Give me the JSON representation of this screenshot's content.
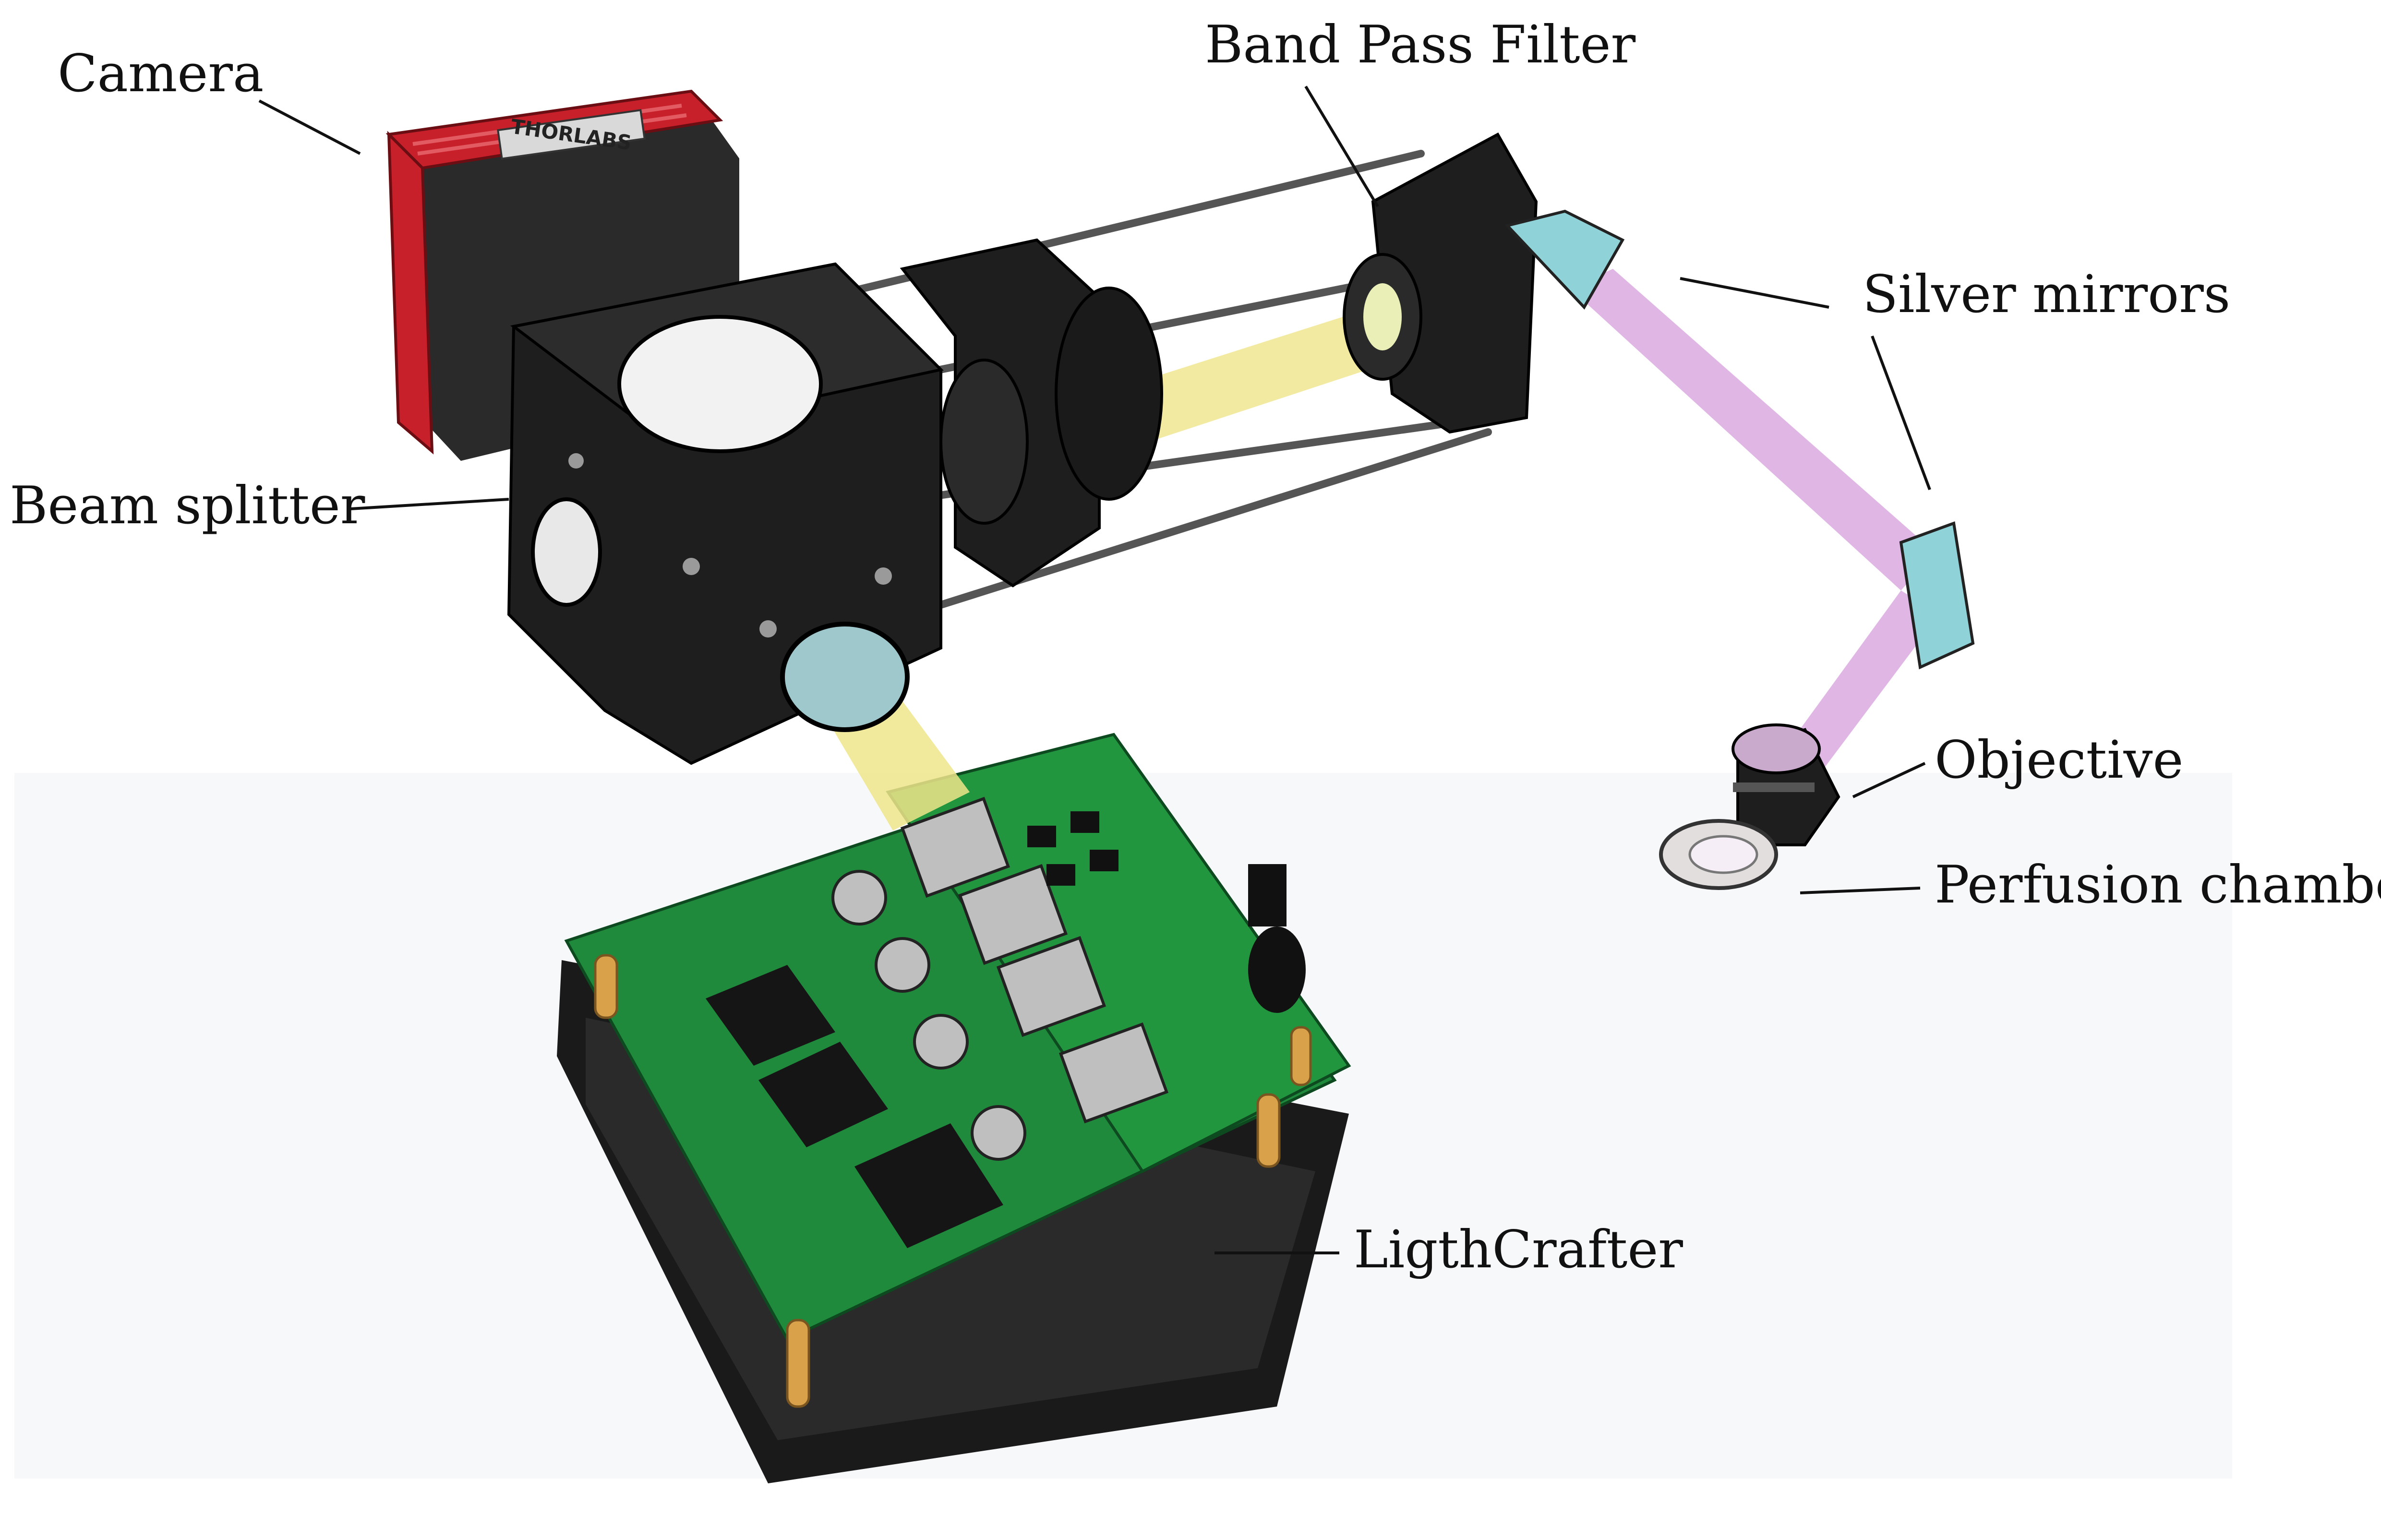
{
  "labels": {
    "camera": "Camera",
    "band_pass_filter": "Band Pass Filter",
    "silver_mirrors": "Silver mirrors",
    "beam_splitter": "Beam splitter",
    "objective": "Objective",
    "perfusion_chamber": "Perfusion chamber",
    "lightcrafter": "LigthCrafter"
  },
  "camera_brand": "THORLABS",
  "colors": {
    "camera_body": "#c8202a",
    "mount_black": "#1e1e1e",
    "pcb_green": "#1f8a3c",
    "beam_yellow": "#efe58a",
    "beam_violet": "#dba9e0",
    "mirror_cyan": "#8fd3d8",
    "spacer_brass": "#d9a24a"
  }
}
